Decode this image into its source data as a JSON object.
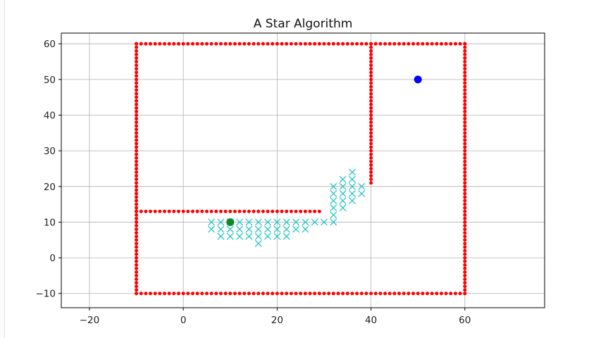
{
  "chart_data": {
    "type": "scatter",
    "title": "A Star Algorithm",
    "xlabel": "",
    "ylabel": "",
    "xlim": [
      -26,
      77
    ],
    "ylim": [
      -14,
      63
    ],
    "xticks": [
      -20,
      0,
      20,
      40,
      60
    ],
    "xtick_labels": [
      "−20",
      "0",
      "20",
      "40",
      "60"
    ],
    "yticks": [
      -10,
      0,
      10,
      20,
      30,
      40,
      50,
      60
    ],
    "ytick_labels": [
      "−10",
      "0",
      "10",
      "20",
      "30",
      "40",
      "50",
      "60"
    ],
    "grid": true,
    "legend": null,
    "colors": {
      "obstacle": "#ff0000",
      "explored": "#22c5c5",
      "start": "#0a8a2a",
      "goal": "#0000ff",
      "grid": "#b0b0b0"
    },
    "obstacle_segments": [
      {
        "from": [
          -10,
          -10
        ],
        "to": [
          60,
          -10
        ]
      },
      {
        "from": [
          60,
          -10
        ],
        "to": [
          60,
          60
        ]
      },
      {
        "from": [
          -10,
          60
        ],
        "to": [
          60,
          60
        ]
      },
      {
        "from": [
          -10,
          -10
        ],
        "to": [
          -10,
          60
        ]
      },
      {
        "from": [
          -10,
          13
        ],
        "to": [
          29,
          13
        ]
      },
      {
        "from": [
          40,
          21
        ],
        "to": [
          40,
          60
        ]
      }
    ],
    "explored_nodes": [
      [
        6,
        10
      ],
      [
        8,
        10
      ],
      [
        10,
        10
      ],
      [
        12,
        10
      ],
      [
        14,
        10
      ],
      [
        16,
        10
      ],
      [
        18,
        10
      ],
      [
        20,
        10
      ],
      [
        22,
        10
      ],
      [
        24,
        10
      ],
      [
        26,
        10
      ],
      [
        28,
        10
      ],
      [
        30,
        10
      ],
      [
        32,
        10
      ],
      [
        6,
        8
      ],
      [
        8,
        8
      ],
      [
        10,
        8
      ],
      [
        12,
        8
      ],
      [
        14,
        8
      ],
      [
        16,
        8
      ],
      [
        18,
        8
      ],
      [
        20,
        8
      ],
      [
        22,
        8
      ],
      [
        24,
        8
      ],
      [
        26,
        8
      ],
      [
        8,
        6
      ],
      [
        10,
        6
      ],
      [
        12,
        6
      ],
      [
        14,
        6
      ],
      [
        16,
        6
      ],
      [
        18,
        6
      ],
      [
        20,
        6
      ],
      [
        22,
        6
      ],
      [
        16,
        4
      ],
      [
        32,
        12
      ],
      [
        32,
        14
      ],
      [
        34,
        14
      ],
      [
        32,
        16
      ],
      [
        34,
        16
      ],
      [
        36,
        16
      ],
      [
        32,
        18
      ],
      [
        34,
        18
      ],
      [
        36,
        18
      ],
      [
        38,
        18
      ],
      [
        32,
        20
      ],
      [
        34,
        20
      ],
      [
        36,
        20
      ],
      [
        38,
        20
      ],
      [
        34,
        22
      ],
      [
        36,
        22
      ],
      [
        36,
        24
      ]
    ],
    "start": [
      10,
      10
    ],
    "goal": [
      50,
      50
    ]
  }
}
